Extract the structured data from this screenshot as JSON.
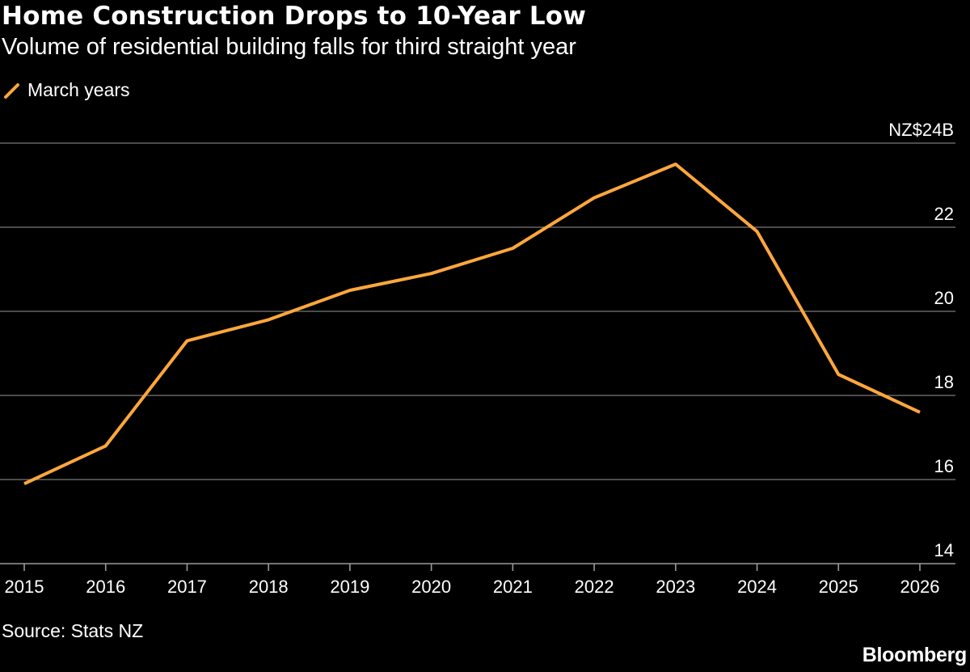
{
  "header": {
    "title": "Home Construction Drops to 10-Year Low",
    "subtitle": "Volume of residential building falls for third straight year"
  },
  "legend": {
    "label": "March years"
  },
  "footer": {
    "source": "Source: Stats NZ",
    "brand": "Bloomberg"
  },
  "colors": {
    "background": "#000000",
    "line": "#ffa73b",
    "grid": "#7a7a7a",
    "text": "#ffffff"
  },
  "chart_data": {
    "type": "line",
    "title": "Home Construction Drops to 10-Year Low",
    "subtitle": "Volume of residential building falls for third straight year",
    "xlabel": "",
    "ylabel": "",
    "x": [
      2015,
      2016,
      2017,
      2018,
      2019,
      2020,
      2021,
      2022,
      2023,
      2024,
      2025,
      2026
    ],
    "series": [
      {
        "name": "March years",
        "values": [
          15.9,
          16.8,
          19.3,
          19.8,
          20.5,
          20.9,
          21.5,
          22.7,
          23.5,
          21.9,
          18.5,
          17.6
        ]
      }
    ],
    "xlim": [
      2015,
      2026
    ],
    "ylim": [
      14,
      24
    ],
    "yticks": [
      14,
      16,
      18,
      20,
      22,
      24
    ],
    "ytick_labels": [
      "14",
      "16",
      "18",
      "20",
      "22",
      "NZ$24B"
    ],
    "xtick_labels": [
      "2015",
      "2016",
      "2017",
      "2018",
      "2019",
      "2020",
      "2021",
      "2022",
      "2023",
      "2024",
      "2025",
      "2026"
    ],
    "grid": true,
    "legend_position": "top-left",
    "y_axis_side": "right"
  }
}
